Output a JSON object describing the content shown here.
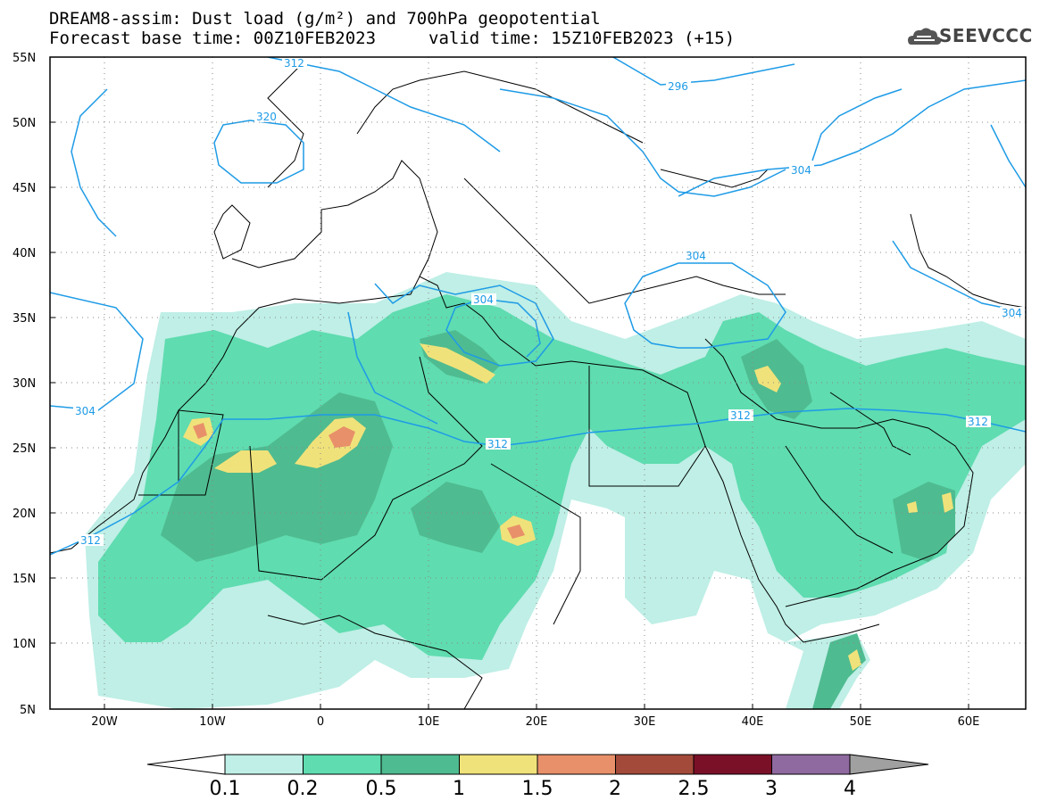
{
  "header": {
    "line1": "DREAM8-assim: Dust load (g/m²) and 700hPa geopotential",
    "line2_left": "Forecast base time: 00Z10FEB2023",
    "line2_right": "valid time: 15Z10FEB2023 (+15)"
  },
  "logo": {
    "text": "SEEVCCC",
    "icon": "cloud-icon"
  },
  "axes": {
    "lat_labels": [
      "55N",
      "50N",
      "45N",
      "40N",
      "35N",
      "30N",
      "25N",
      "20N",
      "15N",
      "10N",
      "5N"
    ],
    "lon_labels": [
      "20W",
      "10W",
      "0",
      "10E",
      "20E",
      "30E",
      "40E",
      "50E",
      "60E"
    ]
  },
  "contours": {
    "labels": [
      "312",
      "320",
      "296",
      "304",
      "304",
      "304",
      "304",
      "304",
      "312",
      "312",
      "312",
      "312"
    ]
  },
  "colorbar": {
    "labels": [
      "0.1",
      "0.2",
      "0.5",
      "1",
      "1.5",
      "2",
      "2.5",
      "3",
      "4"
    ],
    "colors": [
      "#bfefe6",
      "#5fdcb0",
      "#4fbb90",
      "#f0e27a",
      "#e8906a",
      "#a34a3a",
      "#7a1028",
      "#8f6aa0"
    ],
    "low_color": "#ffffff",
    "high_color": "#a0a0a0"
  }
}
